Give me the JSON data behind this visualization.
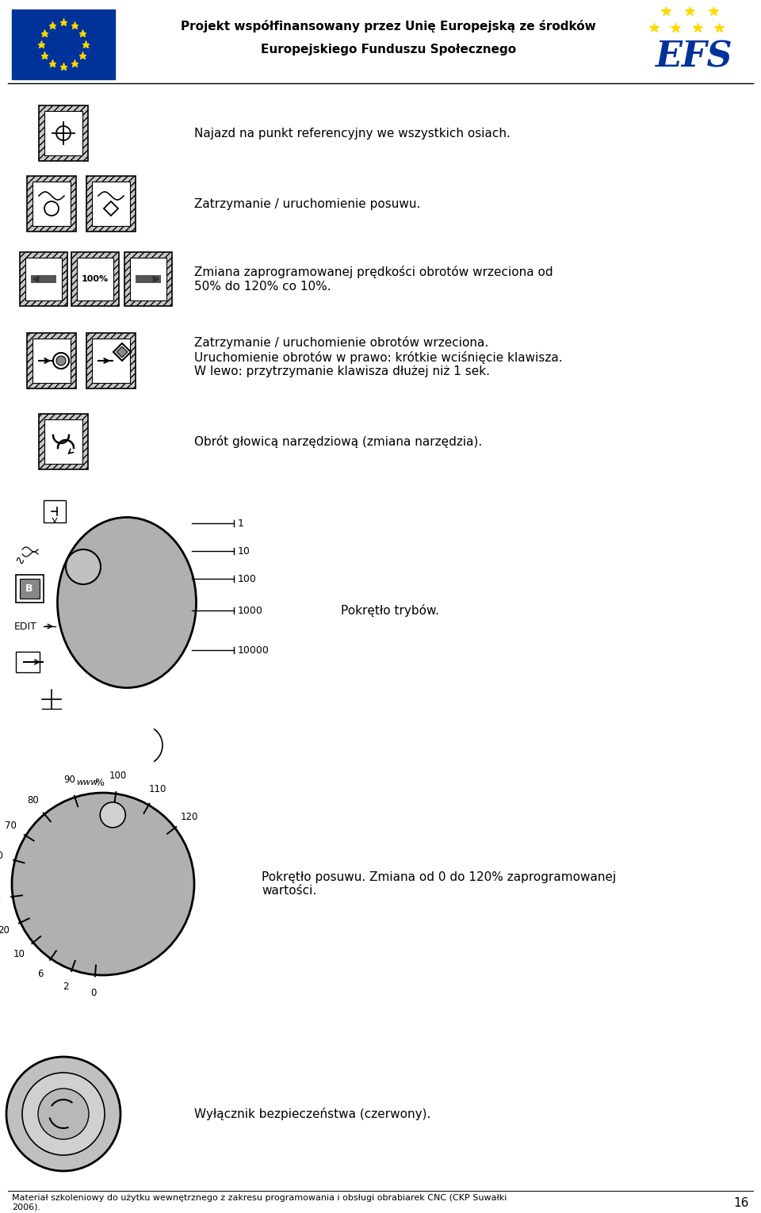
{
  "bg_color": "#ffffff",
  "header_text1": "Projekt współfinansowany przez Unię Europejską ze środków",
  "header_text2": "Europejskiego Funduszu Społecznego",
  "row1_text": "Najazd na punkt referencyjny we wszystkich osiach.",
  "row2_text": "Zatrzymanie / uruchomienie posuwu.",
  "row3_text": "Zmiana zaprogramowanej prędkości obrotów wrzeciona od\n50% do 120% co 10%.",
  "row4_text": "Zatrzymanie / uruchomienie obrotów wrzeciona.\nUruchomienie obrotów w prawo: krótkie wciśnięcie klawisza.\nW lewo: przytrzymanie klawisza dłużej niż 1 sek.",
  "row5_text": "Obrót głowicą narzędziową (zmiana narzędzia).",
  "dial1_text": "Pokrętło trybów.",
  "dial2_text": "Pokrętło posuwu. Zmiana od 0 do 120% zaprogramowanej\nwartości.",
  "switch_text": "Wyłącznik bezpieczeństwa (czerwony).",
  "footer": "Materiał szkoleniowy do użytku wewnętrznego z zakresu programowania i obsługi obrabiarek CNC (CKP Suwałki\n2006).",
  "page_num": "16"
}
